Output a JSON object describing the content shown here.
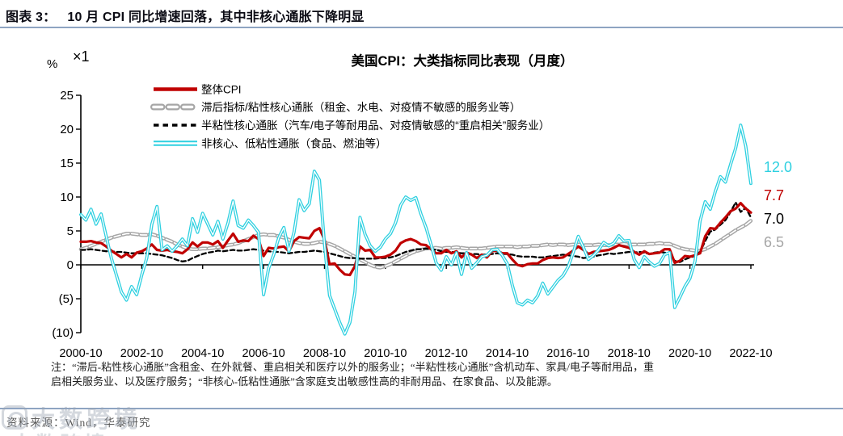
{
  "header": {
    "figure_label": "图表 3：",
    "figure_title": "10 月 CPI 同比增速回落，其中非核心通胀下降明显"
  },
  "footnote": {
    "line1": "注：“滞后-粘性核心通胀”含租金、在外就餐、重启相关和医疗以外的服务业；“半粘性核心通胀”含机动车、家具/电子等耐用品，重",
    "line2": "启相关服务业、以及医疗服务；“非核心-低粘性通胀”含家庭支出敏感性高的非耐用品、在家食品、以及能源。"
  },
  "source_line": "资料来源：Wind，华泰研究",
  "watermark_text": "大数跨境",
  "chart_data": {
    "type": "line",
    "title": "美国CPI：大类指标同比表现（月度）",
    "unit_label": "%",
    "scale_label": "×1",
    "ylim": [
      -10,
      25
    ],
    "grid": false,
    "legend_position": "top-left",
    "y_ticks": [
      {
        "v": 25,
        "label": "25"
      },
      {
        "v": 20,
        "label": "20"
      },
      {
        "v": 15,
        "label": "15"
      },
      {
        "v": 10,
        "label": "10"
      },
      {
        "v": 5,
        "label": "5"
      },
      {
        "v": 0,
        "label": "0"
      },
      {
        "v": -5,
        "label": "(5)"
      },
      {
        "v": -10,
        "label": "(10)"
      }
    ],
    "x_ticks": [
      "2000-10",
      "2002-10",
      "2004-10",
      "2006-10",
      "2008-10",
      "2010-10",
      "2012-10",
      "2014-10",
      "2016-10",
      "2018-10",
      "2020-10",
      "2022-10"
    ],
    "x_start": "2000-10",
    "x_end": "2022-10",
    "x_step_months": 2,
    "series": [
      {
        "name": "整体CPI",
        "color": "#C00000",
        "style": "solid",
        "latest_value": "7.7",
        "values": [
          3.4,
          3.4,
          3.5,
          3.3,
          3.2,
          2.7,
          2.1,
          1.6,
          1.1,
          1.6,
          1.1,
          1.8,
          2.0,
          2.4,
          3.0,
          2.2,
          2.1,
          2.2,
          2.0,
          1.9,
          1.7,
          2.3,
          3.3,
          2.7,
          3.3,
          3.3,
          3.0,
          3.5,
          2.5,
          3.6,
          4.6,
          3.4,
          3.6,
          3.5,
          4.3,
          3.8,
          1.3,
          2.5,
          2.4,
          2.6,
          2.7,
          2.0,
          3.5,
          4.1,
          4.0,
          3.9,
          5.0,
          5.4,
          3.7,
          0.1,
          0.2,
          -0.7,
          -1.4,
          -1.5,
          -0.2,
          2.7,
          2.1,
          2.2,
          1.1,
          1.1,
          1.2,
          1.5,
          2.1,
          3.2,
          3.6,
          3.8,
          3.5,
          3.0,
          2.9,
          2.3,
          1.7,
          1.7,
          2.2,
          1.7,
          2.0,
          1.1,
          1.8,
          1.5,
          1.0,
          1.5,
          1.1,
          2.0,
          2.1,
          1.7,
          1.7,
          0.8,
          0.0,
          -0.2,
          0.1,
          0.2,
          0.2,
          0.7,
          1.0,
          1.1,
          1.0,
          1.1,
          1.6,
          2.1,
          2.7,
          2.2,
          1.6,
          1.9,
          2.0,
          2.1,
          2.2,
          2.5,
          2.9,
          2.7,
          2.5,
          1.9,
          1.5,
          2.0,
          1.6,
          1.7,
          1.8,
          2.3,
          2.3,
          0.3,
          0.6,
          1.3,
          1.2,
          1.4,
          1.7,
          4.2,
          5.4,
          5.3,
          6.2,
          7.0,
          7.9,
          8.3,
          9.1,
          8.3,
          7.7
        ]
      },
      {
        "name": "滞后指标/粘性核心通胀（租金、水电、对疫情不敏感的服务业等）",
        "color": "#A6A6A6",
        "style": "hollow-dash",
        "latest_value": "6.5",
        "values": [
          2.3,
          2.5,
          2.8,
          3.1,
          3.4,
          3.7,
          4.0,
          4.2,
          4.4,
          4.6,
          4.6,
          4.5,
          4.4,
          4.4,
          4.5,
          4.3,
          4.0,
          3.7,
          3.4,
          3.0,
          2.7,
          2.4,
          2.3,
          2.3,
          2.4,
          2.4,
          2.5,
          2.6,
          2.7,
          2.9,
          3.0,
          3.2,
          3.5,
          3.8,
          4.1,
          4.4,
          4.5,
          4.4,
          4.4,
          4.2,
          4.0,
          3.7,
          3.4,
          3.2,
          3.1,
          3.1,
          3.2,
          3.4,
          3.3,
          3.1,
          2.8,
          2.4,
          2.0,
          1.6,
          1.2,
          0.8,
          0.4,
          0.0,
          -0.3,
          -0.4,
          -0.2,
          0.1,
          0.5,
          0.9,
          1.3,
          1.7,
          2.0,
          2.2,
          2.4,
          2.5,
          2.5,
          2.4,
          2.5,
          2.5,
          2.6,
          2.5,
          2.4,
          2.4,
          2.4,
          2.4,
          2.5,
          2.6,
          2.7,
          2.7,
          2.7,
          2.7,
          2.6,
          2.7,
          2.7,
          2.8,
          2.8,
          2.9,
          3.0,
          2.9,
          3.0,
          3.0,
          2.9,
          3.0,
          3.0,
          2.9,
          2.9,
          2.9,
          3.0,
          2.9,
          2.9,
          3.0,
          3.0,
          3.1,
          3.0,
          3.0,
          3.0,
          3.0,
          3.1,
          3.1,
          3.2,
          3.1,
          3.1,
          2.8,
          2.5,
          2.3,
          2.2,
          2.1,
          2.1,
          2.3,
          2.7,
          3.1,
          3.6,
          4.1,
          4.6,
          5.1,
          5.5,
          5.9,
          6.5
        ]
      },
      {
        "name": "半粘性核心通胀（汽车/电子等耐用品、对疫情敏感的“重启相关”服务业）",
        "color": "#000000",
        "style": "dash",
        "latest_value": "7.0",
        "values": [
          2.2,
          2.2,
          2.3,
          2.2,
          2.1,
          2.0,
          2.0,
          1.9,
          1.9,
          1.8,
          1.7,
          1.7,
          1.7,
          1.7,
          1.6,
          1.5,
          1.4,
          1.2,
          1.0,
          0.7,
          0.5,
          0.6,
          1.0,
          1.3,
          1.6,
          1.8,
          1.9,
          2.1,
          2.0,
          2.1,
          2.2,
          2.1,
          2.1,
          2.2,
          2.3,
          2.2,
          2.1,
          2.0,
          1.9,
          1.9,
          1.8,
          1.7,
          1.8,
          1.9,
          1.9,
          2.0,
          2.1,
          2.0,
          1.9,
          1.7,
          1.5,
          1.3,
          1.1,
          1.0,
          1.0,
          0.9,
          0.9,
          0.9,
          0.9,
          1.0,
          1.0,
          1.1,
          1.3,
          1.6,
          1.9,
          2.1,
          2.3,
          2.3,
          2.4,
          2.3,
          2.2,
          2.0,
          1.9,
          1.9,
          1.8,
          1.7,
          1.7,
          1.6,
          1.6,
          1.5,
          1.5,
          1.6,
          1.7,
          1.6,
          1.6,
          1.5,
          1.3,
          1.2,
          1.2,
          1.2,
          1.1,
          1.1,
          1.2,
          1.3,
          1.4,
          1.5,
          1.4,
          1.3,
          1.2,
          1.0,
          1.1,
          1.2,
          1.4,
          1.5,
          1.7,
          1.6,
          1.7,
          1.8,
          1.9,
          1.8,
          1.9,
          1.8,
          1.6,
          1.8,
          1.9,
          1.8,
          1.7,
          0.6,
          0.4,
          0.8,
          1.1,
          1.3,
          1.9,
          3.5,
          4.9,
          5.2,
          5.9,
          6.6,
          7.8,
          9.2,
          7.8,
          8.4,
          7.0
        ]
      },
      {
        "name": "非核心、低粘性通胀（食品、燃油等）",
        "color": "#2ED0E0",
        "style": "hollow-solid",
        "latest_value": "12.0",
        "values": [
          7.4,
          6.6,
          8.2,
          6.0,
          7.5,
          4.2,
          1.0,
          -1.5,
          -4.0,
          -5.2,
          -3.2,
          -4.4,
          -1.5,
          1.0,
          6.0,
          8.6,
          2.2,
          2.8,
          2.0,
          2.8,
          3.8,
          2.8,
          6.8,
          4.8,
          7.6,
          6.0,
          4.4,
          6.4,
          3.8,
          6.2,
          9.4,
          5.8,
          5.4,
          6.6,
          5.8,
          4.8,
          -4.4,
          -0.5,
          1.5,
          4.0,
          5.5,
          2.0,
          4.8,
          9.6,
          8.0,
          9.0,
          13.8,
          12.5,
          3.0,
          -4.5,
          -6.5,
          -8.5,
          -10.2,
          -8.5,
          -4.0,
          7.0,
          4.5,
          2.8,
          2.0,
          2.6,
          3.8,
          4.6,
          6.2,
          8.8,
          10.0,
          9.5,
          9.9,
          7.5,
          5.5,
          3.0,
          0.3,
          -0.8,
          1.2,
          0.0,
          1.8,
          -1.4,
          1.8,
          -0.5,
          0.3,
          1.2,
          1.4,
          2.2,
          2.3,
          1.4,
          0.2,
          -3.0,
          -5.6,
          -5.9,
          -5.2,
          -5.6,
          -4.6,
          -2.7,
          -4.3,
          -3.3,
          -2.3,
          -1.6,
          -0.3,
          1.8,
          4.2,
          2.6,
          0.8,
          1.4,
          2.2,
          3.3,
          2.8,
          3.2,
          4.3,
          3.5,
          3.6,
          0.8,
          -0.4,
          1.2,
          0.4,
          -0.2,
          0.2,
          1.5,
          1.8,
          -6.3,
          -4.8,
          -3.2,
          -2.0,
          0.5,
          6.5,
          9.3,
          8.2,
          10.8,
          13.0,
          12.2,
          14.8,
          17.2,
          20.6,
          17.5,
          12.0
        ]
      }
    ],
    "value_labels": [
      {
        "text": "12.0",
        "color": "#2ED0E0"
      },
      {
        "text": "7.7",
        "color": "#C00000"
      },
      {
        "text": "7.0",
        "color": "#000000"
      },
      {
        "text": "6.5",
        "color": "#A6A6A6"
      }
    ]
  }
}
